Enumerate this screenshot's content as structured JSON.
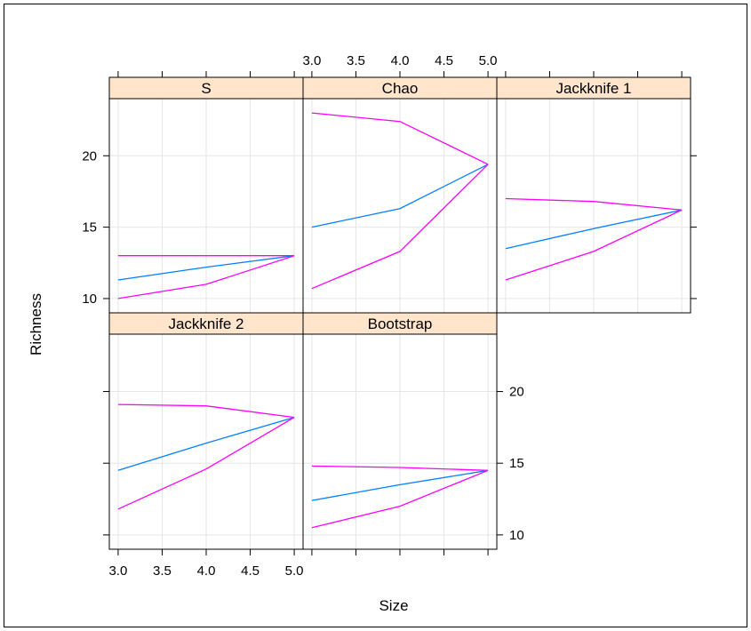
{
  "chart_data": {
    "type": "line",
    "layout": "lattice",
    "xlabel": "Size",
    "ylabel": "Richness",
    "xlim": [
      2.9,
      5.1
    ],
    "ylim": [
      9,
      24
    ],
    "x_ticks": [
      3.0,
      3.5,
      4.0,
      4.5,
      5.0
    ],
    "x_tick_labels": [
      "3.0",
      "3.5",
      "4.0",
      "4.5",
      "5.0"
    ],
    "y_ticks": [
      10,
      15,
      20
    ],
    "y_tick_labels": [
      "10",
      "15",
      "20"
    ],
    "grid": true,
    "strip_color": "#ffe5cc",
    "colors": {
      "estimate": "#0080ff",
      "bounds": "#ff00ff"
    },
    "panels": [
      {
        "label": "S",
        "series": [
          {
            "role": "upper",
            "x": [
              3,
              4,
              5
            ],
            "values": [
              13.0,
              13.0,
              13.0
            ]
          },
          {
            "role": "estimate",
            "x": [
              3,
              4,
              5
            ],
            "values": [
              11.3,
              12.2,
              13.0
            ]
          },
          {
            "role": "lower",
            "x": [
              3,
              4,
              5
            ],
            "values": [
              10.0,
              11.0,
              13.0
            ]
          }
        ]
      },
      {
        "label": "Chao",
        "series": [
          {
            "role": "upper",
            "x": [
              3,
              4,
              5
            ],
            "values": [
              23.0,
              22.4,
              19.4
            ]
          },
          {
            "role": "estimate",
            "x": [
              3,
              4,
              5
            ],
            "values": [
              15.0,
              16.3,
              19.4
            ]
          },
          {
            "role": "lower",
            "x": [
              3,
              4,
              5
            ],
            "values": [
              10.7,
              13.3,
              19.4
            ]
          }
        ]
      },
      {
        "label": "Jackknife 1",
        "series": [
          {
            "role": "upper",
            "x": [
              3,
              4,
              5
            ],
            "values": [
              17.0,
              16.8,
              16.2
            ]
          },
          {
            "role": "estimate",
            "x": [
              3,
              4,
              5
            ],
            "values": [
              13.5,
              14.9,
              16.2
            ]
          },
          {
            "role": "lower",
            "x": [
              3,
              4,
              5
            ],
            "values": [
              11.3,
              13.3,
              16.2
            ]
          }
        ]
      },
      {
        "label": "Jackknife 2",
        "series": [
          {
            "role": "upper",
            "x": [
              3,
              4,
              5
            ],
            "values": [
              19.1,
              19.0,
              18.2
            ]
          },
          {
            "role": "estimate",
            "x": [
              3,
              4,
              5
            ],
            "values": [
              14.5,
              16.4,
              18.2
            ]
          },
          {
            "role": "lower",
            "x": [
              3,
              4,
              5
            ],
            "values": [
              11.8,
              14.6,
              18.2
            ]
          }
        ]
      },
      {
        "label": "Bootstrap",
        "series": [
          {
            "role": "upper",
            "x": [
              3,
              4,
              5
            ],
            "values": [
              14.8,
              14.7,
              14.5
            ]
          },
          {
            "role": "estimate",
            "x": [
              3,
              4,
              5
            ],
            "values": [
              12.4,
              13.5,
              14.5
            ]
          },
          {
            "role": "lower",
            "x": [
              3,
              4,
              5
            ],
            "values": [
              10.5,
              12.0,
              14.5
            ]
          }
        ]
      }
    ]
  }
}
